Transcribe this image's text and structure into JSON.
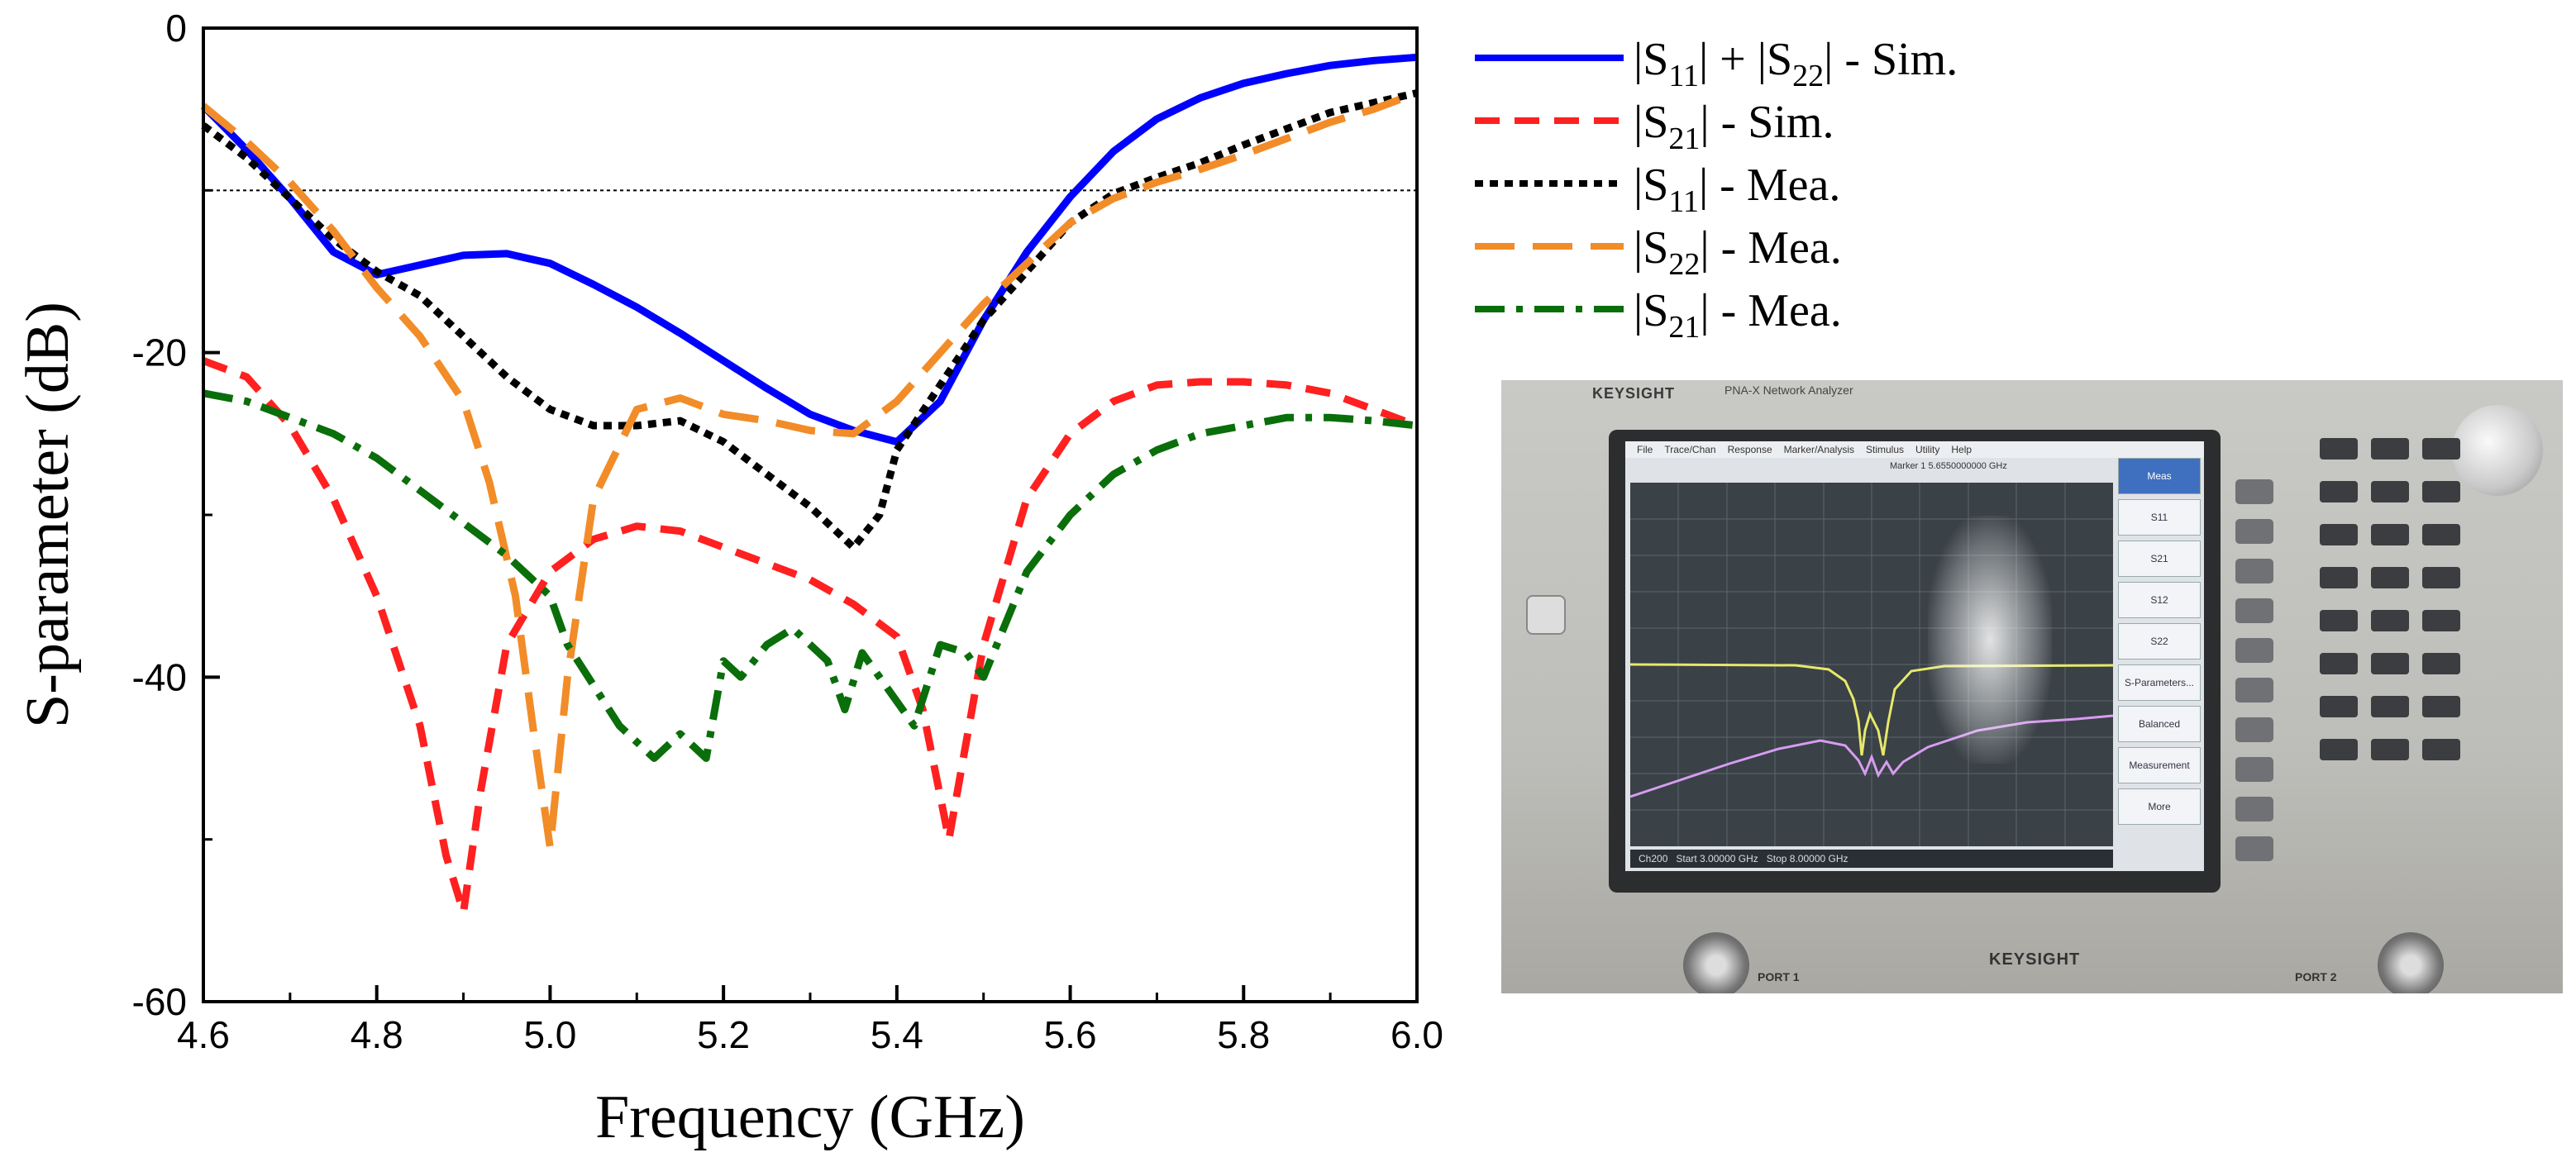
{
  "chart_data": {
    "type": "line",
    "xlabel": "Frequency (GHz)",
    "ylabel": "S-parameter (dB)",
    "xlim": [
      4.6,
      6.0
    ],
    "ylim": [
      -60,
      0
    ],
    "xticks": [
      4.6,
      4.8,
      5.0,
      5.2,
      5.4,
      5.6,
      5.8,
      6.0
    ],
    "xtick_labels": [
      "4.6",
      "4.8",
      "5.0",
      "5.2",
      "5.4",
      "5.6",
      "5.8",
      "6.0"
    ],
    "yticks": [
      0,
      -20,
      -40,
      -60
    ],
    "ytick_labels": [
      "0",
      "-20",
      "-40",
      "-60"
    ],
    "reference_line": {
      "y": -10,
      "style": "dotted"
    },
    "legend_position": "top-right outside plot",
    "series": [
      {
        "name": "|S11| + |S22| - Sim.",
        "legend_parts": [
          [
            "|S",
            ""
          ],
          [
            "11",
            "sub"
          ],
          [
            "| + |S",
            ""
          ],
          [
            "22",
            "sub"
          ],
          [
            "| - Sim.",
            ""
          ]
        ],
        "color": "#0000ff",
        "style": "solid",
        "x": [
          4.6,
          4.65,
          4.7,
          4.75,
          4.8,
          4.85,
          4.9,
          4.95,
          5.0,
          5.05,
          5.1,
          5.15,
          5.2,
          5.25,
          5.3,
          5.35,
          5.4,
          5.45,
          5.5,
          5.55,
          5.6,
          5.65,
          5.7,
          5.75,
          5.8,
          5.85,
          5.9,
          5.95,
          6.0
        ],
        "y": [
          -4.8,
          -7.5,
          -10.5,
          -13.8,
          -15.2,
          -14.6,
          -14.0,
          -13.9,
          -14.5,
          -15.8,
          -17.2,
          -18.8,
          -20.5,
          -22.2,
          -23.8,
          -24.8,
          -25.5,
          -23.0,
          -18.0,
          -13.8,
          -10.4,
          -7.6,
          -5.6,
          -4.3,
          -3.4,
          -2.8,
          -2.3,
          -2.0,
          -1.8
        ]
      },
      {
        "name": "|S21| - Sim.",
        "legend_parts": [
          [
            "|S",
            ""
          ],
          [
            "21",
            "sub"
          ],
          [
            "| - Sim.",
            ""
          ]
        ],
        "color": "#ff2020",
        "style": "dashed",
        "x": [
          4.6,
          4.65,
          4.7,
          4.75,
          4.8,
          4.85,
          4.88,
          4.9,
          4.92,
          4.95,
          5.0,
          5.05,
          5.1,
          5.15,
          5.2,
          5.25,
          5.3,
          5.35,
          5.4,
          5.43,
          5.46,
          5.5,
          5.55,
          5.6,
          5.65,
          5.7,
          5.75,
          5.8,
          5.85,
          5.9,
          5.95,
          6.0
        ],
        "y": [
          -20.5,
          -21.5,
          -24.5,
          -29.0,
          -35.0,
          -43.0,
          -51.0,
          -54.5,
          -47.0,
          -38.0,
          -33.5,
          -31.5,
          -30.7,
          -31.0,
          -32.0,
          -33.0,
          -34.0,
          -35.5,
          -37.5,
          -42.0,
          -50.0,
          -38.0,
          -29.0,
          -25.0,
          -23.0,
          -22.0,
          -21.8,
          -21.8,
          -22.0,
          -22.5,
          -23.5,
          -24.5
        ]
      },
      {
        "name": "|S11| - Mea.",
        "legend_parts": [
          [
            "|S",
            ""
          ],
          [
            "11",
            "sub"
          ],
          [
            "| - Mea.",
            ""
          ]
        ],
        "color": "#000000",
        "style": "dotted",
        "x": [
          4.6,
          4.65,
          4.7,
          4.75,
          4.8,
          4.85,
          4.9,
          4.95,
          5.0,
          5.05,
          5.1,
          5.15,
          5.2,
          5.25,
          5.3,
          5.35,
          5.38,
          5.4,
          5.45,
          5.5,
          5.55,
          5.6,
          5.65,
          5.7,
          5.75,
          5.8,
          5.85,
          5.9,
          5.95,
          6.0
        ],
        "y": [
          -6.0,
          -8.0,
          -10.5,
          -13.0,
          -15.0,
          -16.5,
          -19.0,
          -21.5,
          -23.5,
          -24.5,
          -24.5,
          -24.2,
          -25.5,
          -27.5,
          -29.5,
          -32.0,
          -30.0,
          -26.0,
          -22.0,
          -18.0,
          -15.0,
          -12.0,
          -10.2,
          -9.2,
          -8.3,
          -7.2,
          -6.2,
          -5.2,
          -4.6,
          -4.0
        ]
      },
      {
        "name": "|S22| - Mea.",
        "legend_parts": [
          [
            "|S",
            ""
          ],
          [
            "22",
            "sub"
          ],
          [
            "| - Mea.",
            ""
          ]
        ],
        "color": "#f28c28",
        "style": "longdash",
        "x": [
          4.6,
          4.65,
          4.7,
          4.75,
          4.8,
          4.85,
          4.9,
          4.93,
          4.96,
          4.98,
          5.0,
          5.02,
          5.05,
          5.1,
          5.15,
          5.2,
          5.25,
          5.3,
          5.35,
          5.4,
          5.45,
          5.5,
          5.55,
          5.6,
          5.65,
          5.7,
          5.75,
          5.8,
          5.85,
          5.9,
          5.95,
          6.0
        ],
        "y": [
          -4.8,
          -7.0,
          -9.5,
          -12.5,
          -16.0,
          -19.0,
          -23.0,
          -28.0,
          -35.0,
          -43.0,
          -50.5,
          -40.0,
          -29.0,
          -23.5,
          -22.8,
          -23.8,
          -24.2,
          -24.8,
          -25.0,
          -23.0,
          -20.0,
          -17.0,
          -14.5,
          -12.0,
          -10.5,
          -9.5,
          -8.7,
          -7.8,
          -6.8,
          -5.8,
          -5.0,
          -4.0
        ]
      },
      {
        "name": "|S21| - Mea.",
        "legend_parts": [
          [
            "|S",
            ""
          ],
          [
            "21",
            "sub"
          ],
          [
            "| - Mea.",
            ""
          ]
        ],
        "color": "#0a6e0a",
        "style": "dashdot",
        "x": [
          4.6,
          4.65,
          4.7,
          4.75,
          4.8,
          4.85,
          4.9,
          4.95,
          5.0,
          5.02,
          5.05,
          5.08,
          5.12,
          5.15,
          5.18,
          5.2,
          5.22,
          5.25,
          5.28,
          5.32,
          5.34,
          5.36,
          5.38,
          5.42,
          5.45,
          5.48,
          5.5,
          5.55,
          5.6,
          5.65,
          5.7,
          5.75,
          5.8,
          5.85,
          5.9,
          5.95,
          6.0
        ],
        "y": [
          -22.5,
          -23.0,
          -24.0,
          -25.0,
          -26.5,
          -28.5,
          -30.5,
          -32.5,
          -35.0,
          -38.0,
          -40.5,
          -43.0,
          -45.0,
          -43.5,
          -45.0,
          -39.0,
          -40.0,
          -38.0,
          -37.0,
          -39.0,
          -42.0,
          -38.5,
          -40.0,
          -43.0,
          -38.0,
          -38.5,
          -40.0,
          -33.5,
          -30.0,
          -27.5,
          -26.0,
          -25.0,
          -24.5,
          -24.0,
          -24.0,
          -24.2,
          -24.5
        ]
      }
    ]
  },
  "photo": {
    "brand": "KEYSIGHT",
    "model": "PNA-X Network Analyzer",
    "menu": [
      "File",
      "Trace/Chan",
      "Response",
      "Marker/Analysis",
      "Stimulus",
      "Utility",
      "Help"
    ],
    "marker_readout": "Marker 1  5.6550000000 GHz",
    "softkeys": [
      "Meas",
      "S11",
      "S21",
      "S12",
      "S22",
      "S-Parameters...",
      "Balanced Parameters...",
      "Measurement Class...",
      "More"
    ],
    "status": [
      "Ch200",
      "Start  3.00000 GHz",
      "Stop  8.00000 GHz"
    ],
    "ports": [
      "PORT 1",
      "PORT 2"
    ]
  }
}
